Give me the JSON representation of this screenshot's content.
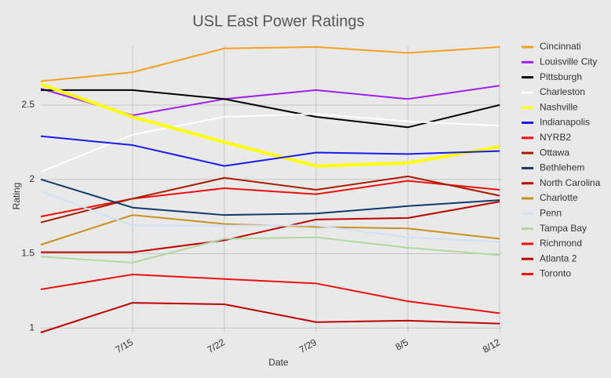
{
  "chart_data": {
    "type": "line",
    "title": "USL East Power Ratings",
    "x_label": "Date",
    "y_label": "Rating",
    "categories": [
      null,
      "7/15",
      "7/22",
      "7/29",
      "8/5",
      "8/12"
    ],
    "ylim": [
      0.97,
      2.9
    ],
    "yticks": [
      1,
      1.5,
      2,
      2.5
    ],
    "grid": true,
    "legend": "right",
    "series": [
      {
        "name": "Cincinnati",
        "color": "#f4a020",
        "values": [
          2.66,
          2.72,
          2.88,
          2.89,
          2.85,
          2.89
        ]
      },
      {
        "name": "Louisville City",
        "color": "#a020f0",
        "values": [
          2.61,
          2.43,
          2.54,
          2.6,
          2.54,
          2.63
        ]
      },
      {
        "name": "Pittsburgh",
        "color": "#000000",
        "values": [
          2.6,
          2.6,
          2.54,
          2.42,
          2.35,
          2.5
        ]
      },
      {
        "name": "Charleston",
        "color": "#ffffff",
        "values": [
          2.05,
          2.3,
          2.42,
          2.44,
          2.39,
          2.36
        ]
      },
      {
        "name": "Nashville",
        "color": "#ffff00",
        "values": [
          2.64,
          2.42,
          2.25,
          2.09,
          2.11,
          2.22
        ]
      },
      {
        "name": "Indianapolis",
        "color": "#1a1aee",
        "values": [
          2.29,
          2.23,
          2.09,
          2.18,
          2.17,
          2.19
        ]
      },
      {
        "name": "NYRB2",
        "color": "#f01010",
        "values": [
          1.75,
          1.87,
          1.94,
          1.9,
          1.99,
          1.93
        ]
      },
      {
        "name": "Ottawa",
        "color": "#a81c00",
        "values": [
          1.71,
          1.87,
          2.01,
          1.93,
          2.02,
          1.89
        ]
      },
      {
        "name": "Bethlehem",
        "color": "#0f3a6a",
        "values": [
          2.0,
          1.81,
          1.76,
          1.77,
          1.82,
          1.86
        ]
      },
      {
        "name": "North Carolina",
        "color": "#c00000",
        "values": [
          1.51,
          1.51,
          1.59,
          1.73,
          1.74,
          1.85
        ]
      },
      {
        "name": "Charlotte",
        "color": "#c8901c",
        "values": [
          1.56,
          1.76,
          1.7,
          1.68,
          1.67,
          1.6
        ]
      },
      {
        "name": "Penn",
        "color": "#d0e0f8",
        "values": [
          1.92,
          1.69,
          1.69,
          1.69,
          1.61,
          1.58
        ]
      },
      {
        "name": "Tampa Bay",
        "color": "#b0d8a0",
        "values": [
          1.48,
          1.44,
          1.6,
          1.61,
          1.54,
          1.49
        ]
      },
      {
        "name": "Richmond",
        "color": "#f01010",
        "values": [
          1.26,
          1.36,
          1.33,
          1.3,
          1.18,
          1.1
        ]
      },
      {
        "name": "Atlanta 2",
        "color": "#c00000",
        "values": [
          0.97,
          1.17,
          1.16,
          1.04,
          1.05,
          1.03
        ]
      },
      {
        "name": "Toronto",
        "color": "#f01010",
        "values": [
          null,
          null,
          null,
          null,
          null,
          null
        ]
      }
    ]
  }
}
